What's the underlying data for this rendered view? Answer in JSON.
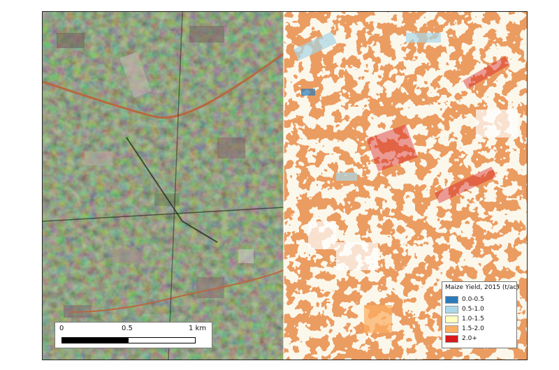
{
  "scale_bar": {
    "label_0": "0",
    "label_mid": "0.5",
    "label_end": "1 km"
  },
  "legend": {
    "title": "Maize Yield, 2015 (t/ac)",
    "items": [
      {
        "label": "0.0-0.5",
        "color": "#2b7bb9"
      },
      {
        "label": "0.5-1.0",
        "color": "#abd9e9"
      },
      {
        "label": "1.0-1.5",
        "color": "#ffffbf"
      },
      {
        "label": "1.5-2.0",
        "color": "#fdae61"
      },
      {
        "label": "2.0+",
        "color": "#d7191c"
      }
    ]
  }
}
